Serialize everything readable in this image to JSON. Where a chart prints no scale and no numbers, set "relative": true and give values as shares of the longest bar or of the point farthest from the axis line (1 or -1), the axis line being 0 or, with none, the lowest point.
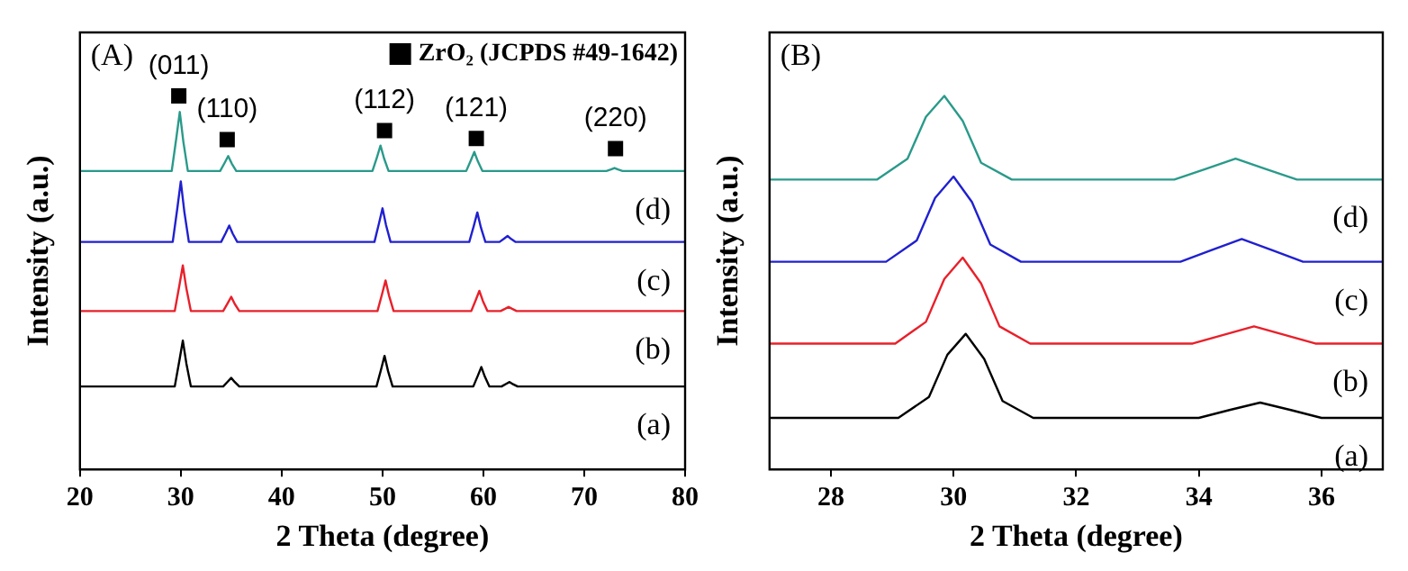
{
  "chart_data": [
    {
      "type": "line",
      "title": "(A)",
      "xlabel": "2 Theta (degree)",
      "ylabel": "Intensity (a.u.)",
      "relative": true,
      "xlim": [
        20,
        80
      ],
      "xticks": [
        20,
        30,
        40,
        50,
        60,
        70,
        80
      ],
      "legend": "top right",
      "annotations": [
        {
          "text": "(011)",
          "x": 29.8,
          "y": 1.0
        },
        {
          "text": "(110)",
          "x": 34.6,
          "y": 0.883
        },
        {
          "text": "(112)",
          "x": 50.2,
          "y": 0.907
        },
        {
          "text": "(121)",
          "x": 59.3,
          "y": 0.886
        },
        {
          "text": "(220)",
          "x": 73.1,
          "y": 0.859
        }
      ],
      "series": [
        {
          "name": "(a)",
          "color": "#000000",
          "x": [
            20,
            29.4,
            29.85,
            30.2,
            30.55,
            31.0,
            34.2,
            34.65,
            35.0,
            35.35,
            35.8,
            49.4,
            49.85,
            50.2,
            50.55,
            51.0,
            59.0,
            59.45,
            59.8,
            60.15,
            60.6,
            61.8,
            62.25,
            62.6,
            62.95,
            63.4,
            80
          ],
          "values": [
            0.222,
            0.222,
            0.29,
            0.345,
            0.284,
            0.222,
            0.222,
            0.235,
            0.245,
            0.234,
            0.222,
            0.222,
            0.267,
            0.304,
            0.263,
            0.222,
            0.222,
            0.251,
            0.274,
            0.248,
            0.222,
            0.222,
            0.229,
            0.234,
            0.228,
            0.222,
            0.222
          ]
        },
        {
          "name": "(b)",
          "color": "#e8202a",
          "x": [
            20,
            29.4,
            29.85,
            30.2,
            30.55,
            31.0,
            34.2,
            34.65,
            35.0,
            35.35,
            35.8,
            49.5,
            49.95,
            50.3,
            50.65,
            51.1,
            58.8,
            59.25,
            59.6,
            59.95,
            60.4,
            61.7,
            62.15,
            62.5,
            62.85,
            63.3,
            80
          ],
          "values": [
            0.424,
            0.424,
            0.491,
            0.546,
            0.485,
            0.424,
            0.424,
            0.445,
            0.462,
            0.443,
            0.424,
            0.424,
            0.469,
            0.506,
            0.465,
            0.424,
            0.424,
            0.454,
            0.478,
            0.451,
            0.424,
            0.424,
            0.43,
            0.435,
            0.43,
            0.424,
            0.424
          ]
        },
        {
          "name": "(c)",
          "color": "#2020d0",
          "x": [
            20,
            29.2,
            29.65,
            30.0,
            30.35,
            30.8,
            34.0,
            34.45,
            34.8,
            35.15,
            35.6,
            49.2,
            49.65,
            50.0,
            50.35,
            50.8,
            58.6,
            59.05,
            59.4,
            59.75,
            60.2,
            61.6,
            62.05,
            62.4,
            62.75,
            63.2,
            80
          ],
          "values": [
            0.609,
            0.609,
            0.698,
            0.771,
            0.69,
            0.609,
            0.609,
            0.633,
            0.653,
            0.631,
            0.609,
            0.609,
            0.659,
            0.699,
            0.654,
            0.609,
            0.609,
            0.652,
            0.688,
            0.648,
            0.609,
            0.609,
            0.618,
            0.625,
            0.617,
            0.609,
            0.609
          ]
        },
        {
          "name": "(d)",
          "color": "#2a9a8a",
          "x": [
            20,
            29.1,
            29.55,
            29.9,
            30.25,
            30.7,
            33.9,
            34.35,
            34.7,
            35.05,
            35.5,
            49.0,
            49.45,
            49.8,
            50.15,
            50.6,
            58.3,
            58.75,
            59.1,
            59.45,
            59.9,
            72.2,
            72.65,
            73.0,
            73.35,
            73.8,
            80
          ],
          "values": [
            0.799,
            0.799,
            0.886,
            0.957,
            0.878,
            0.799,
            0.799,
            0.821,
            0.839,
            0.819,
            0.799,
            0.799,
            0.836,
            0.867,
            0.833,
            0.799,
            0.799,
            0.827,
            0.85,
            0.825,
            0.799,
            0.799,
            0.803,
            0.807,
            0.803,
            0.799,
            0.799
          ]
        },
        {
          "name": "ZrO₂ (JCPDS #49-1642)",
          "type": "scatter",
          "marker": "square",
          "color": "#000000",
          "x": [
            29.8,
            34.6,
            50.2,
            59.3,
            73.1
          ],
          "values": [
            1.0,
            0.883,
            0.907,
            0.886,
            0.859
          ]
        }
      ]
    },
    {
      "type": "line",
      "title": "(B)",
      "xlabel": "2 Theta (degree)",
      "ylabel": "Intensity (a.u.)",
      "relative": true,
      "xlim": [
        27,
        37
      ],
      "xticks": [
        28,
        30,
        32,
        34,
        36
      ],
      "series": [
        {
          "name": "(a)",
          "color": "#000000",
          "x": [
            27,
            29.1,
            29.6,
            29.9,
            30.2,
            30.5,
            30.8,
            31.3,
            34.0,
            34.5,
            35.0,
            35.5,
            36.0,
            37
          ],
          "values": [
            0.138,
            0.138,
            0.194,
            0.307,
            0.363,
            0.296,
            0.183,
            0.138,
            0.138,
            0.159,
            0.179,
            0.159,
            0.138,
            0.138
          ]
        },
        {
          "name": "(b)",
          "color": "#e8202a",
          "x": [
            27,
            29.05,
            29.55,
            29.85,
            30.15,
            30.45,
            30.75,
            31.25,
            33.9,
            34.4,
            34.9,
            35.4,
            35.9,
            37
          ],
          "values": [
            0.337,
            0.337,
            0.395,
            0.51,
            0.567,
            0.498,
            0.383,
            0.337,
            0.337,
            0.36,
            0.383,
            0.36,
            0.337,
            0.337
          ]
        },
        {
          "name": "(c)",
          "color": "#2020d0",
          "x": [
            27,
            28.9,
            29.4,
            29.7,
            30.0,
            30.3,
            30.6,
            31.1,
            33.7,
            34.2,
            34.7,
            35.2,
            35.7,
            37
          ],
          "values": [
            0.556,
            0.556,
            0.613,
            0.727,
            0.784,
            0.716,
            0.602,
            0.556,
            0.556,
            0.587,
            0.617,
            0.587,
            0.556,
            0.556
          ]
        },
        {
          "name": "(d)",
          "color": "#2a9a8a",
          "x": [
            27,
            28.75,
            29.25,
            29.55,
            29.85,
            30.15,
            30.45,
            30.95,
            33.6,
            34.1,
            34.6,
            35.1,
            35.6,
            37
          ],
          "values": [
            0.776,
            0.776,
            0.832,
            0.944,
            1.0,
            0.933,
            0.821,
            0.776,
            0.776,
            0.804,
            0.832,
            0.804,
            0.776,
            0.776
          ]
        }
      ]
    }
  ]
}
